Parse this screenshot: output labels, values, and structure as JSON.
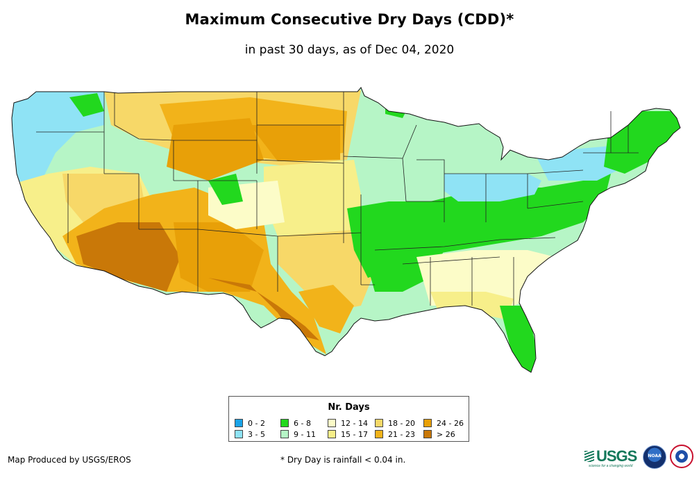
{
  "title": "Maximum Consecutive Dry Days (CDD)*",
  "subtitle": "in past 30 days, as of Dec 04, 2020",
  "legend": {
    "title": "Nr. Days",
    "classes": [
      {
        "label": "0 - 2",
        "color": "#1aa3e8"
      },
      {
        "label": "3 - 5",
        "color": "#8fe3f5"
      },
      {
        "label": "6 - 8",
        "color": "#22d81e"
      },
      {
        "label": "9 - 11",
        "color": "#b6f5c6"
      },
      {
        "label": "12 - 14",
        "color": "#fcfcc8"
      },
      {
        "label": "15 - 17",
        "color": "#f7ef8a"
      },
      {
        "label": "18 - 20",
        "color": "#f7d868"
      },
      {
        "label": "21 - 23",
        "color": "#f2b31a"
      },
      {
        "label": "24 - 26",
        "color": "#e8a008"
      },
      {
        "label": "> 26",
        "color": "#c97808"
      }
    ]
  },
  "credit": "Map Produced by USGS/EROS",
  "footnote": "* Dry Day is rainfall < 0.04 in.",
  "logos": {
    "usgs": "USGS",
    "usgs_tagline": "science for a changing world",
    "noaa": "NOAA"
  }
}
